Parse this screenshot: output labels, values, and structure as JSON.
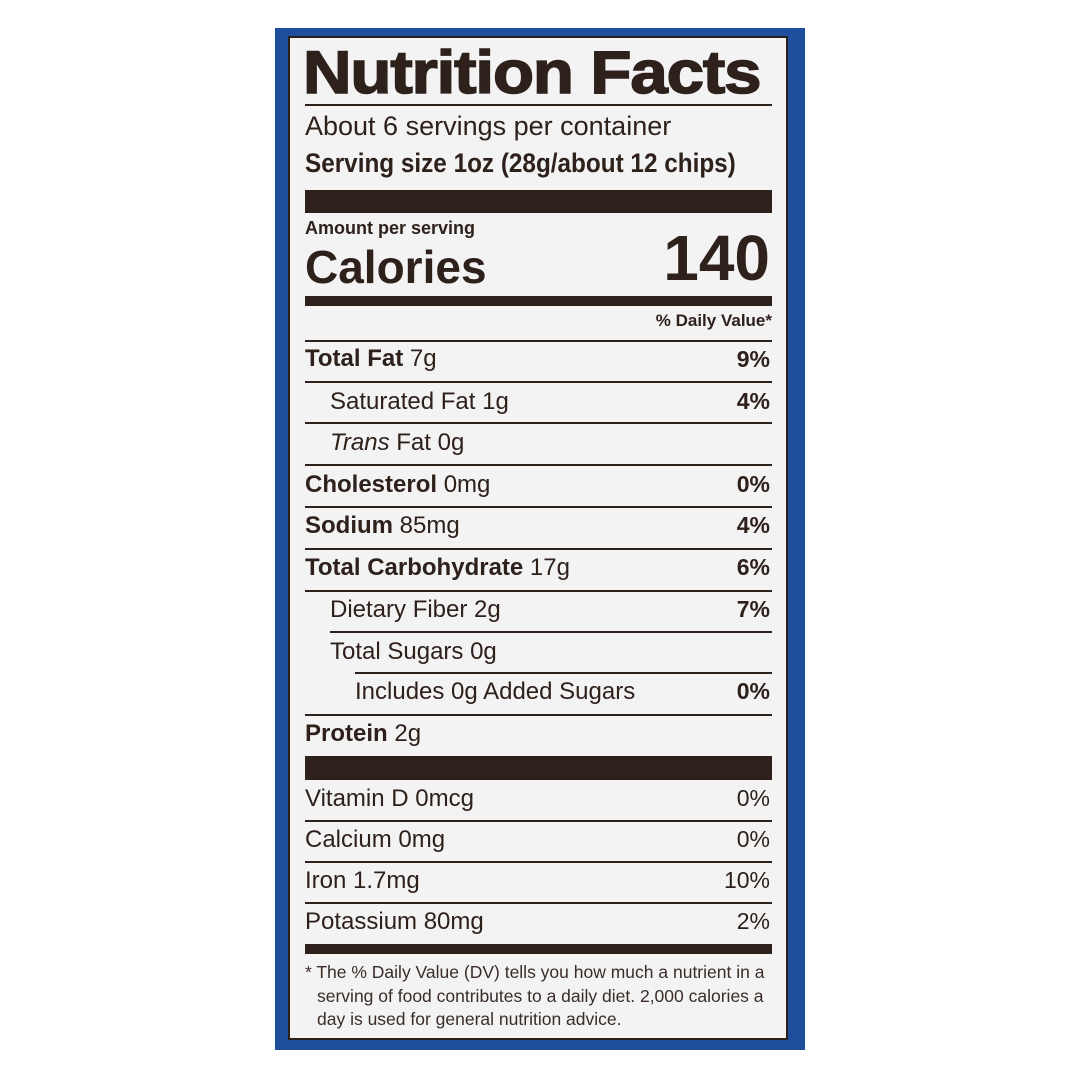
{
  "label": {
    "title": "Nutrition Facts",
    "servings_per_container": "About 6 servings per container",
    "serving_size": "Serving size 1oz (28g/about 12 chips)",
    "amount_per_serving": "Amount per serving",
    "calories_label": "Calories",
    "calories_value": "140",
    "daily_value_header": "% Daily Value*",
    "nutrients": [
      {
        "name": "Total Fat",
        "amount": "7g",
        "dv": "9%"
      },
      {
        "name": "Saturated Fat",
        "amount": "1g",
        "dv": "4%"
      },
      {
        "name": "Trans",
        "name_suffix": "Fat",
        "amount": "0g",
        "dv": ""
      },
      {
        "name": "Cholesterol",
        "amount": "0mg",
        "dv": "0%"
      },
      {
        "name": "Sodium",
        "amount": "85mg",
        "dv": "4%"
      },
      {
        "name": "Total Carbohydrate",
        "amount": "17g",
        "dv": "6%"
      },
      {
        "name": "Dietary Fiber",
        "amount": "2g",
        "dv": "7%"
      },
      {
        "name": "Total Sugars",
        "amount": "0g",
        "dv": ""
      },
      {
        "name": "Includes 0g Added Sugars",
        "amount": "",
        "dv": "0%"
      },
      {
        "name": "Protein",
        "amount": "2g",
        "dv": ""
      }
    ],
    "vitamins": [
      {
        "name": "Vitamin D 0mcg",
        "dv": "0%"
      },
      {
        "name": "Calcium 0mg",
        "dv": "0%"
      },
      {
        "name": "Iron 1.7mg",
        "dv": "10%"
      },
      {
        "name": "Potassium 80mg",
        "dv": "2%"
      }
    ],
    "footnote": "* The % Daily Value (DV) tells you how much a nutrient in a serving of food contributes to a daily diet. 2,000 calories a day is used for general nutrition advice."
  },
  "colors": {
    "panel": "#1d4f9e",
    "ink": "#2e211c",
    "background": "#f3f3f3"
  }
}
